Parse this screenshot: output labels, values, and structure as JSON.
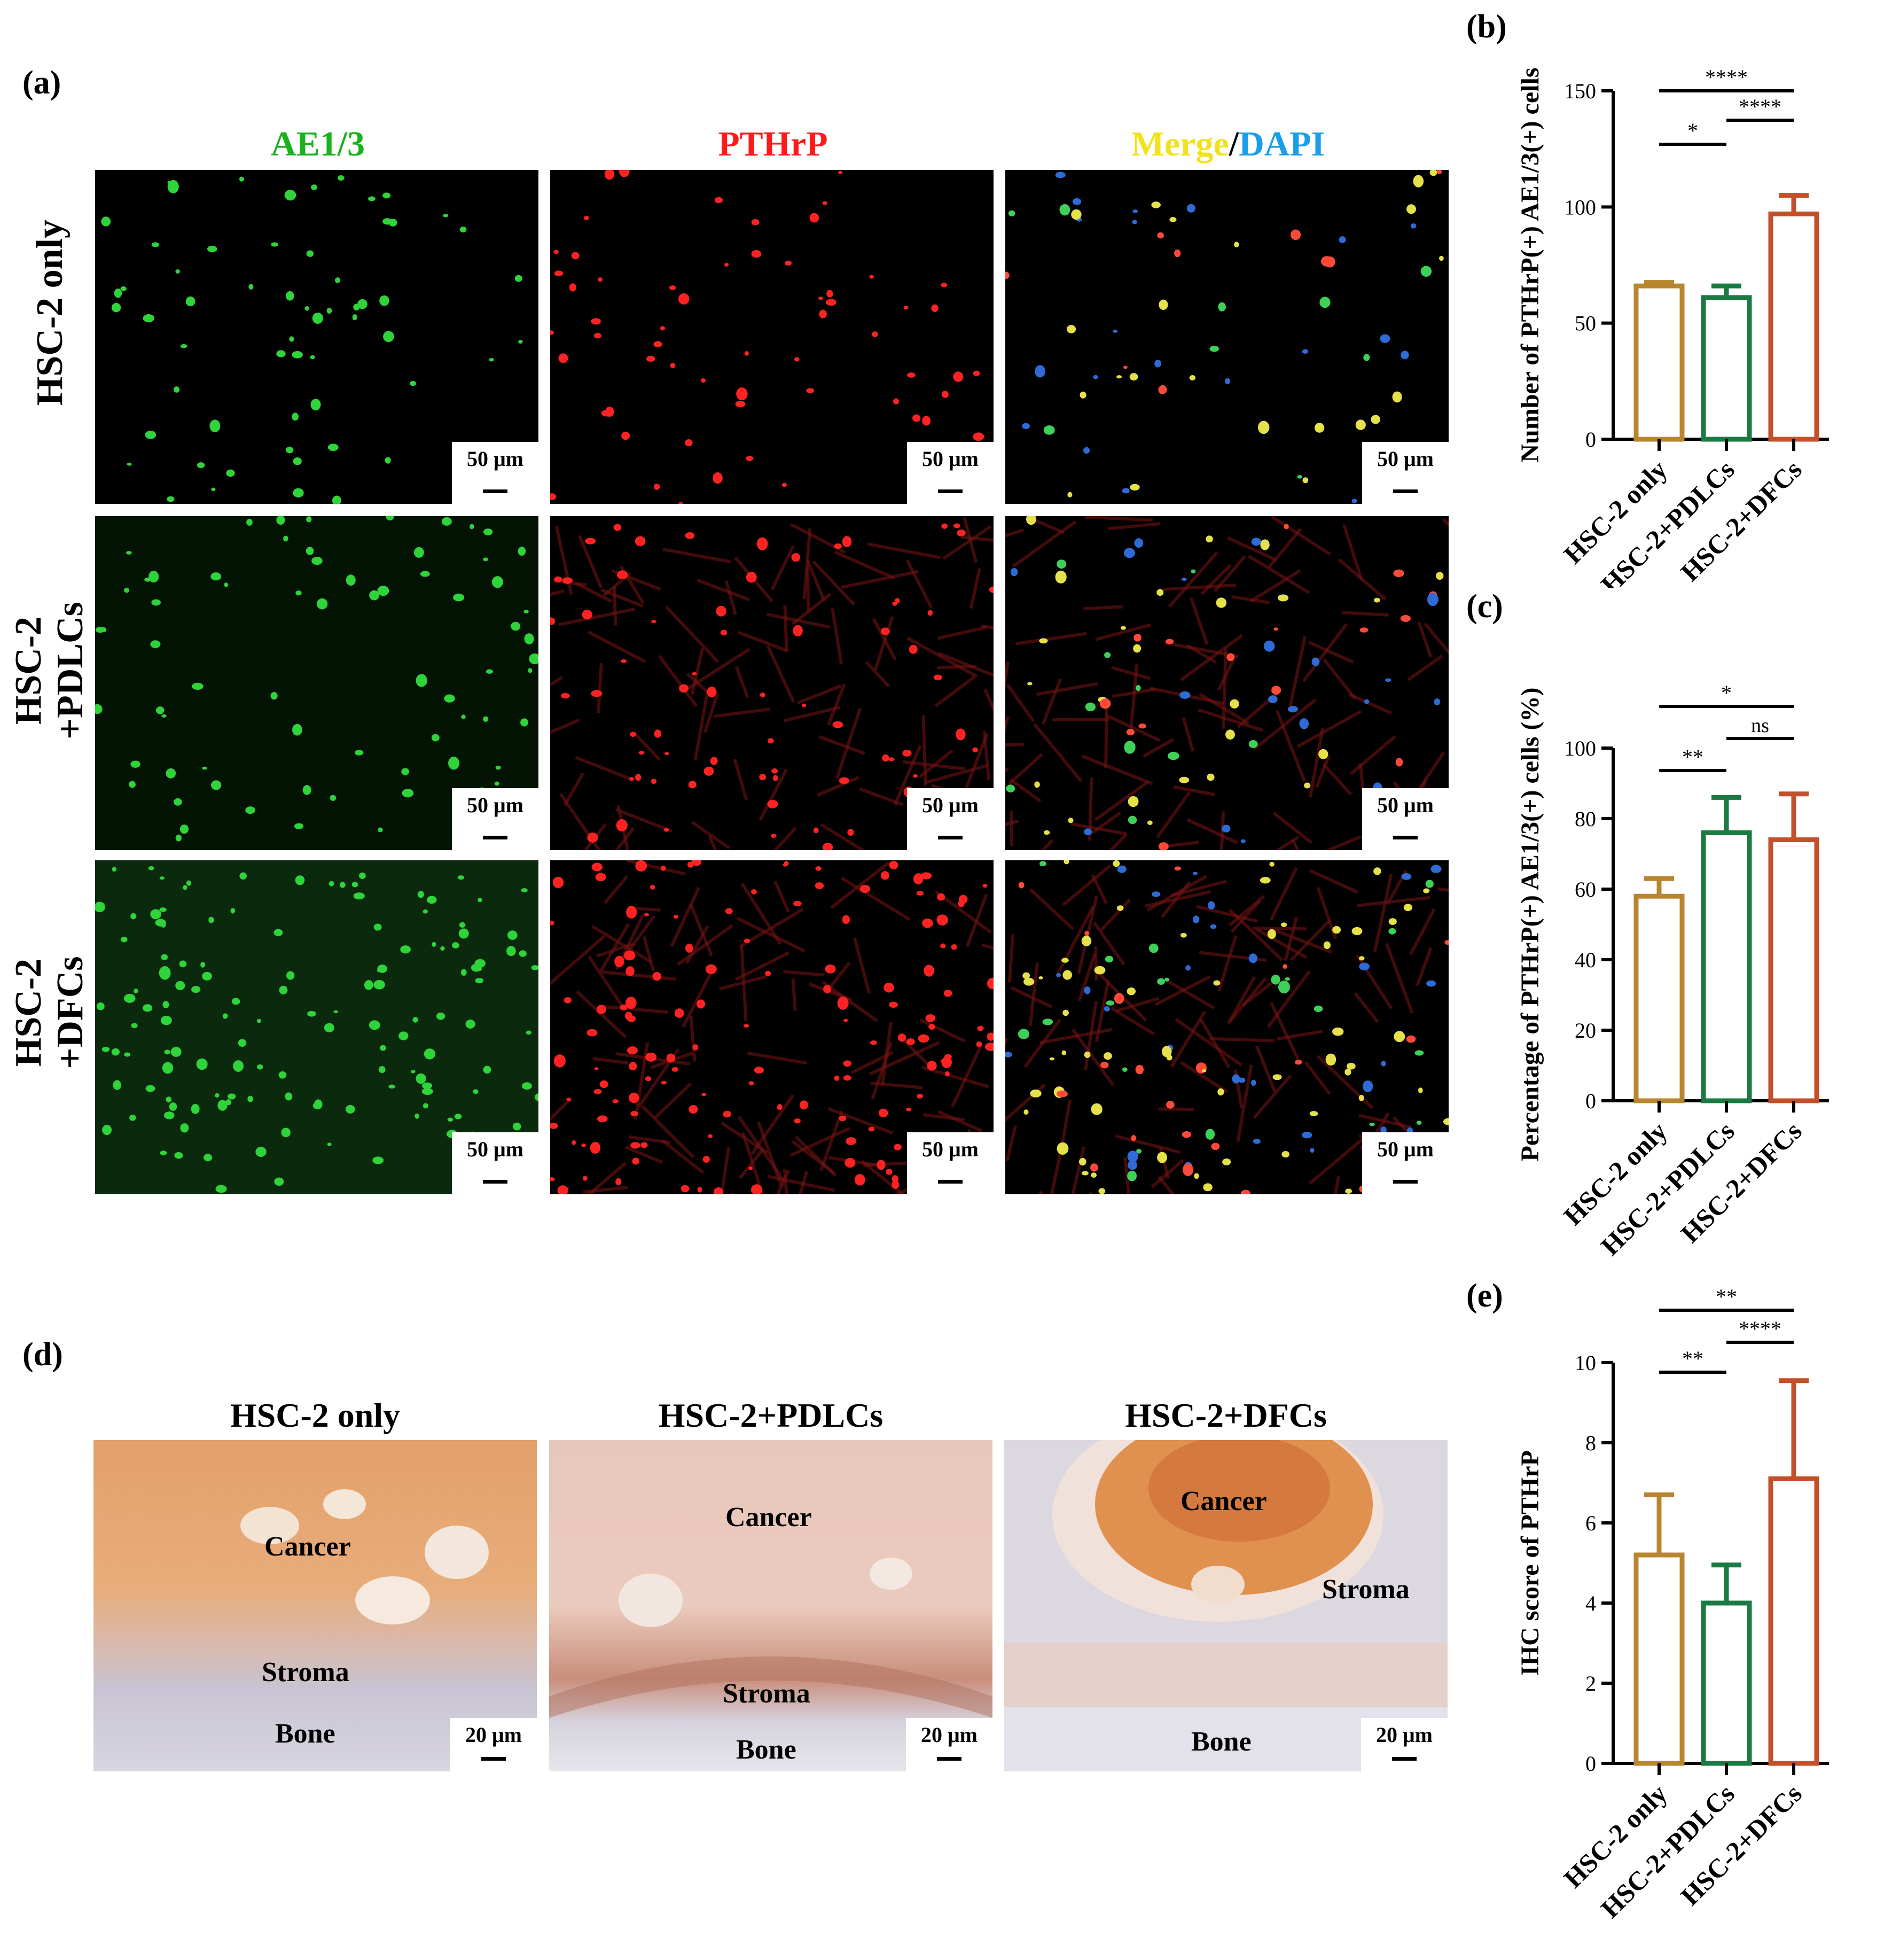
{
  "panels": {
    "a": "(a)",
    "b": "(b)",
    "c": "(c)",
    "d": "(d)",
    "e": "(e)"
  },
  "panel_a": {
    "columns": [
      {
        "text": "AE1/3",
        "color": "#19b21e"
      },
      {
        "text": "PTHrP",
        "color": "#ff1a1a"
      },
      {
        "merge": "Merge",
        "merge_color": "#f2e21c",
        "slash": "/",
        "dapi": "DAPI",
        "dapi_color": "#1a9fe6"
      }
    ],
    "rows": [
      "HSC-2 only",
      "HSC-2\n+PDLCs",
      "HSC-2\n+DFCs"
    ],
    "scale_bar": "50 μm"
  },
  "panel_d": {
    "headers": [
      "HSC-2 only",
      "HSC-2+PDLCs",
      "HSC-2+DFCs"
    ],
    "tissue_labels": {
      "cancer": "Cancer",
      "stroma": "Stroma",
      "bone": "Bone"
    },
    "scale_bar": "20 μm"
  },
  "chart_data": [
    {
      "panel": "b",
      "type": "bar",
      "categories": [
        "HSC-2 only",
        "HSC-2+PDLCs",
        "HSC-2+DFCs"
      ],
      "values": [
        66,
        61,
        97
      ],
      "error": [
        1.5,
        5,
        8
      ],
      "colors": [
        "#b8862e",
        "#1a7a42",
        "#c4502a"
      ],
      "ylabel": "Number of PTHrP(+) AE1/3(+) cells",
      "ylim": [
        0,
        150
      ],
      "yticks": [
        "0",
        "50",
        "100",
        "150"
      ],
      "significance": [
        {
          "pair": [
            0,
            1
          ],
          "label": "*"
        },
        {
          "pair": [
            1,
            2
          ],
          "label": "****"
        },
        {
          "pair": [
            0,
            2
          ],
          "label": "****"
        }
      ]
    },
    {
      "panel": "c",
      "type": "bar",
      "categories": [
        "HSC-2 only",
        "HSC-2+PDLCs",
        "HSC-2+DFCs"
      ],
      "values": [
        58,
        76,
        74
      ],
      "error": [
        5,
        10,
        13
      ],
      "colors": [
        "#b8862e",
        "#1a7a42",
        "#c4502a"
      ],
      "ylabel": "Percentage of PTHrP(+) AE1/3(+) cells (%)",
      "ylim": [
        0,
        100
      ],
      "yticks": [
        "0",
        "20",
        "40",
        "60",
        "80",
        "100"
      ],
      "significance": [
        {
          "pair": [
            0,
            1
          ],
          "label": "**"
        },
        {
          "pair": [
            1,
            2
          ],
          "label": "ns"
        },
        {
          "pair": [
            0,
            2
          ],
          "label": "*"
        }
      ]
    },
    {
      "panel": "e",
      "type": "bar",
      "categories": [
        "HSC-2 only",
        "HSC-2+PDLCs",
        "HSC-2+DFCs"
      ],
      "values": [
        5.2,
        4.0,
        7.1
      ],
      "error": [
        1.5,
        0.95,
        2.45
      ],
      "colors": [
        "#b8862e",
        "#1a7a42",
        "#c4502a"
      ],
      "ylabel": "IHC score of PTHrP",
      "ylim": [
        0,
        10
      ],
      "yticks": [
        "0",
        "2",
        "4",
        "6",
        "8",
        "10"
      ],
      "significance": [
        {
          "pair": [
            0,
            1
          ],
          "label": "**"
        },
        {
          "pair": [
            1,
            2
          ],
          "label": "****"
        },
        {
          "pair": [
            0,
            2
          ],
          "label": "**"
        }
      ]
    }
  ]
}
